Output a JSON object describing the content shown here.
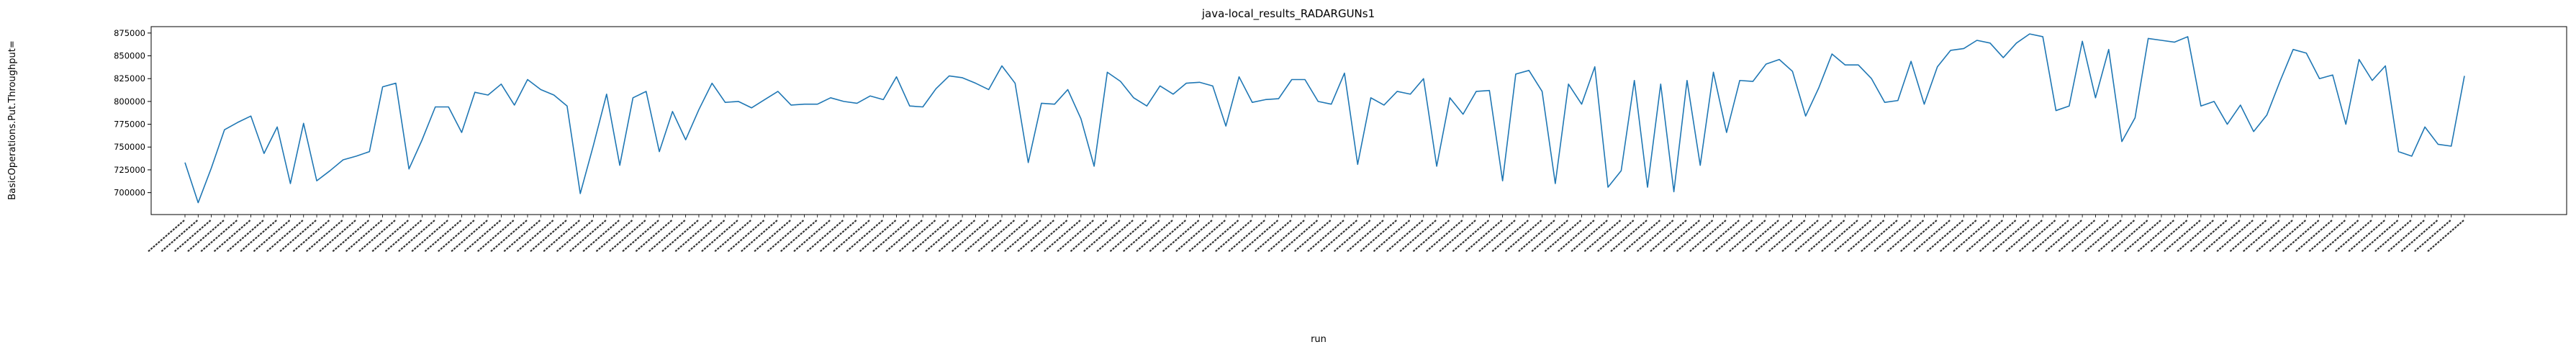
{
  "chart_data": {
    "type": "line",
    "title": "java-local_results_RADARGUNs1",
    "xlabel": "run",
    "ylabel": "BasicOperations.Put.Throughput=",
    "ylim": [
      676000,
      882000
    ],
    "yticks": [
      700000,
      725000,
      750000,
      775000,
      800000,
      825000,
      850000,
      875000
    ],
    "ytick_labels": [
      "700000",
      "725000",
      "750000",
      "775000",
      "800000",
      "825000",
      "850000",
      "875000"
    ],
    "grid": false,
    "legend": "none",
    "line_color": "#1f77b4",
    "xtick_labels_note": "x tick labels are rotated and illegible; values are run identifiers",
    "series": [
      {
        "values": [
          733000,
          689000,
          727000,
          769000,
          777000,
          784000,
          743000,
          772000,
          710000,
          776000,
          713000,
          724000,
          736000,
          740000,
          745000,
          816000,
          820000,
          726000,
          758000,
          794000,
          794000,
          766000,
          810000,
          807000,
          819000,
          796000,
          824000,
          813000,
          807000,
          795000,
          699000,
          752000,
          808000,
          730000,
          804000,
          811000,
          745000,
          789000,
          758000,
          791000,
          820000,
          799000,
          800000,
          793000,
          802000,
          811000,
          796000,
          797000,
          797000,
          804000,
          800000,
          798000,
          806000,
          802000,
          827000,
          795000,
          794000,
          814000,
          828000,
          826000,
          820000,
          813000,
          839000,
          820000,
          733000,
          798000,
          797000,
          813000,
          781000,
          729000,
          832000,
          822000,
          804000,
          795000,
          817000,
          808000,
          820000,
          821000,
          817000,
          773000,
          827000,
          799000,
          802000,
          803000,
          824000,
          824000,
          800000,
          797000,
          831000,
          731000,
          804000,
          796000,
          811000,
          808000,
          825000,
          729000,
          804000,
          786000,
          811000,
          812000,
          713000,
          830000,
          834000,
          811000,
          710000,
          819000,
          797000,
          838000,
          706000,
          724000,
          823000,
          706000,
          819000,
          701000,
          823000,
          730000,
          832000,
          766000,
          823000,
          822000,
          841000,
          846000,
          833000,
          784000,
          815000,
          852000,
          840000,
          840000,
          825000,
          799000,
          801000,
          844000,
          797000,
          838000,
          856000,
          858000,
          867000,
          864000,
          848000,
          864000,
          874000,
          871000,
          790000,
          795000,
          866000,
          804000,
          857000,
          756000,
          782000,
          869000,
          867000,
          865000,
          871000,
          795000,
          800000,
          775000,
          796000,
          767000,
          785000,
          822000,
          857000,
          853000,
          825000,
          829000,
          775000,
          846000,
          823000,
          839000,
          745000,
          740000,
          772000,
          753000,
          751000,
          828000
        ]
      }
    ]
  }
}
